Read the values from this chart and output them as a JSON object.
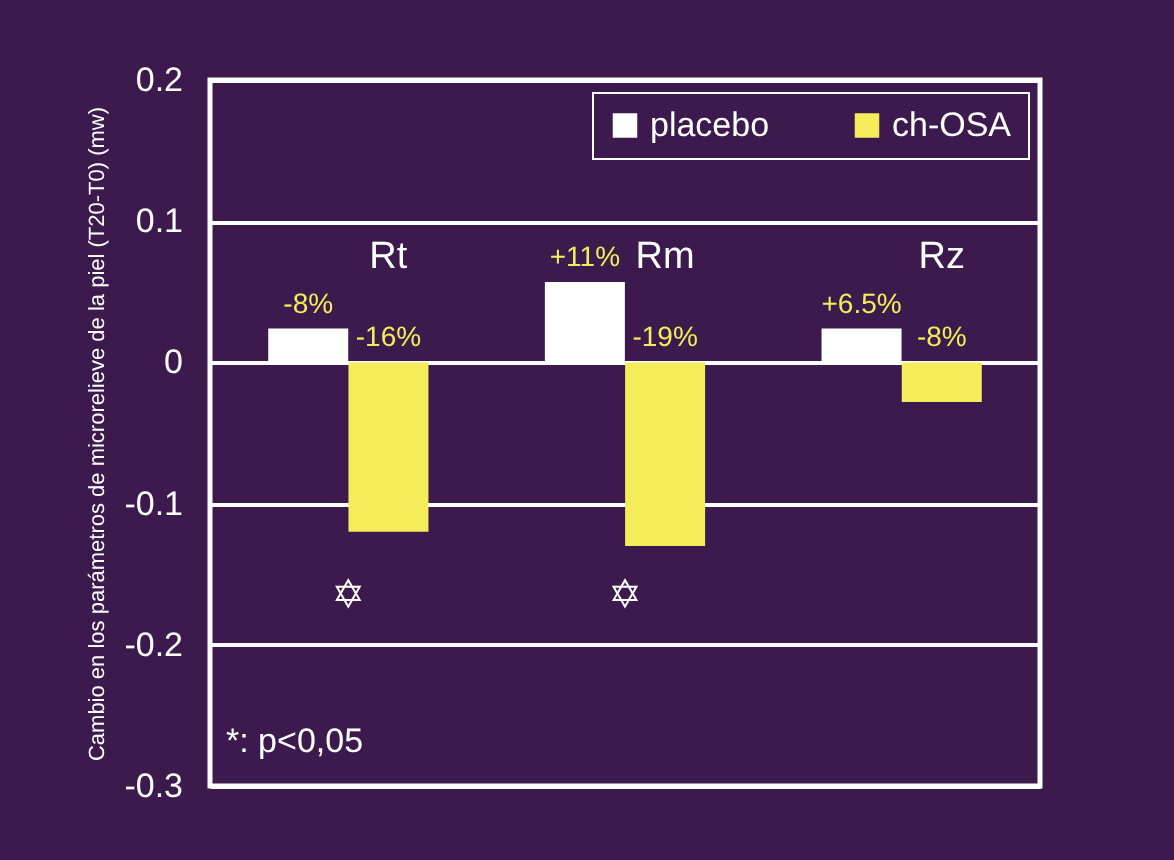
{
  "chart_data": {
    "type": "bar",
    "ylabel": "Cambio en los parámetros de microrelieve de la piel (T20-T0) (mw)",
    "categories": [
      "Rt",
      "Rm",
      "Rz"
    ],
    "series": [
      {
        "name": "placebo",
        "color": "#ffffff",
        "values": [
          0.024,
          0.057,
          0.024
        ]
      },
      {
        "name": "ch-OSA",
        "color": "#f5ec5a",
        "values": [
          -0.12,
          -0.13,
          -0.028
        ]
      }
    ],
    "ylim": [
      -0.3,
      0.2
    ],
    "yticks": [
      -0.3,
      -0.2,
      -0.1,
      0,
      0.1,
      0.2
    ],
    "grid": "y",
    "legend": "top right",
    "tick_labels": "y",
    "annotations": [
      "-8%",
      "+11%",
      "+6.5%",
      "-16%",
      "-19%",
      "-8%",
      "✡",
      "✡",
      "*: p<0,05"
    ]
  }
}
